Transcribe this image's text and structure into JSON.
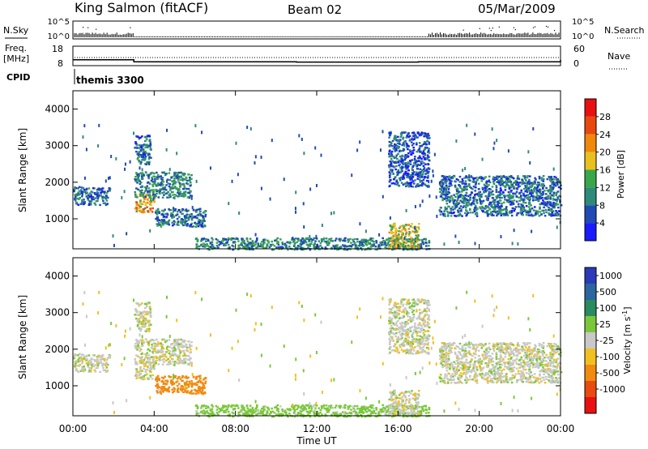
{
  "header": {
    "station": "King Salmon (fitACF)",
    "beam": "Beam 02",
    "date": "05/Mar/2009"
  },
  "noise_panel": {
    "left_label": "N.Sky",
    "right_label": "N.Search",
    "left_ticks": [
      "10^5",
      "10^0"
    ],
    "right_ticks": [
      "10^5",
      "10^0"
    ]
  },
  "freq_panel": {
    "left_label_1": "Freq.",
    "left_label_2": "[MHz]",
    "right_label": "Nave",
    "left_ticks": [
      "18",
      "8"
    ],
    "right_ticks": [
      "60",
      "0"
    ]
  },
  "cpid": {
    "label": "CPID",
    "value": "themis 3300"
  },
  "x_axis": {
    "label": "Time UT",
    "ticks": [
      "00:00",
      "04:00",
      "08:00",
      "12:00",
      "16:00",
      "20:00",
      "00:00"
    ]
  },
  "y_axis": {
    "label": "Slant Range [km]",
    "ticks": [
      "1000",
      "2000",
      "3000",
      "4000"
    ]
  },
  "power_scale": {
    "label": "Power [dB]",
    "ticks": [
      "4",
      "8",
      "12",
      "16",
      "20",
      "24",
      "28"
    ],
    "colors": [
      "#1a1aff",
      "#1f4bb3",
      "#2f8a7a",
      "#3aa64a",
      "#e8c020",
      "#f0880a",
      "#e84810",
      "#e81010"
    ]
  },
  "velocity_scale": {
    "label": "Velocity [m s",
    "label_sup": "-1",
    "label_end": "]",
    "ticks": [
      "1000",
      "500",
      "100",
      "25",
      "-25",
      "-100",
      "-500",
      "-1000"
    ],
    "colors": [
      "#2a3ab8",
      "#2a66a0",
      "#2a8a60",
      "#7ac83a",
      "#c8c8c8",
      "#f0c020",
      "#f08a10",
      "#e84a10",
      "#e81010"
    ]
  },
  "chart_data": {
    "type": "heatmap",
    "x_range_hours": [
      0,
      24
    ],
    "y_range_km": [
      180,
      4500
    ],
    "freq_step_times_hours": [
      0,
      3.0,
      11.0,
      17.0,
      24
    ],
    "freq_levels_mhz": [
      11.0,
      10.0,
      9.8,
      10.0,
      11.0
    ],
    "echo_regions": [
      {
        "t": [
          0.0,
          1.8
        ],
        "r": [
          1400,
          1900
        ],
        "power_db": 8,
        "velocity": 0
      },
      {
        "t": [
          3.0,
          4.0
        ],
        "r": [
          1200,
          1700
        ],
        "power_db": 20,
        "velocity": 0
      },
      {
        "t": [
          3.0,
          5.8
        ],
        "r": [
          1600,
          2300
        ],
        "power_db": 10,
        "velocity": 0
      },
      {
        "t": [
          3.0,
          3.8
        ],
        "r": [
          2500,
          3300
        ],
        "power_db": 8,
        "velocity": 0
      },
      {
        "t": [
          4.0,
          6.5
        ],
        "r": [
          800,
          1300
        ],
        "power_db": 8,
        "velocity": -300
      },
      {
        "t": [
          6.0,
          17.5
        ],
        "r": [
          180,
          500
        ],
        "power_db": 10,
        "velocity": 60
      },
      {
        "t": [
          15.5,
          17.0
        ],
        "r": [
          200,
          900
        ],
        "power_db": 18,
        "velocity": 0
      },
      {
        "t": [
          15.5,
          17.5
        ],
        "r": [
          1900,
          3400
        ],
        "power_db": 6,
        "velocity": 0
      },
      {
        "t": [
          18.0,
          24.0
        ],
        "r": [
          1100,
          2200
        ],
        "power_db": 8,
        "velocity": 0
      }
    ]
  }
}
